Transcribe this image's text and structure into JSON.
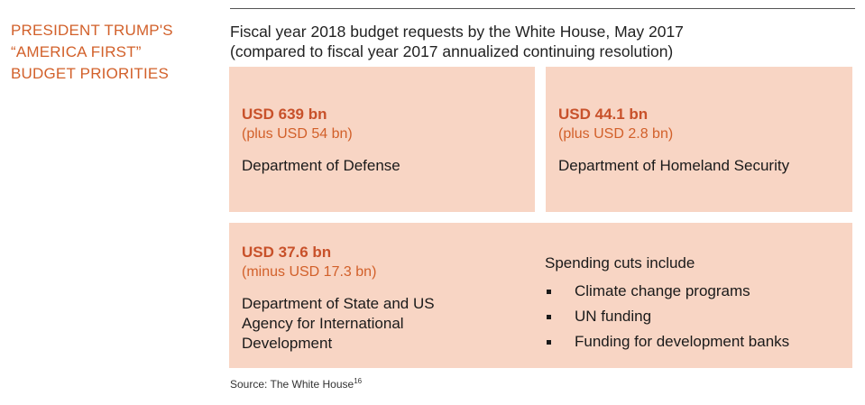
{
  "side_title": [
    "PRESIDENT TRUMP'S",
    "“AMERICA FIRST”",
    "BUDGET PRIORITIES"
  ],
  "subtitle": [
    "Fiscal year 2018 budget requests by the White House, May 2017",
    "(compared to fiscal year 2017 annualized continuing resolution)"
  ],
  "boxes": {
    "defense": {
      "amount": "USD 639 bn",
      "change": "(plus USD 54 bn)",
      "department": "Department of Defense"
    },
    "homeland": {
      "amount": "USD 44.1 bn",
      "change": "(plus USD 2.8 bn)",
      "department": "Department of Homeland Security"
    },
    "state": {
      "amount": "USD 37.6 bn",
      "change": "(minus USD 17.3 bn)",
      "department": "Department of State and US Agency for International Development",
      "cuts_title": "Spending cuts include",
      "cuts": [
        "Climate change programs",
        "UN funding",
        "Funding for development banks"
      ]
    }
  },
  "source": {
    "label": "Source:",
    "text": "The White House",
    "footnote": "16"
  },
  "colors": {
    "accent": "#d2602a",
    "amount": "#c8512a",
    "box_fill": "#f8d5c4"
  }
}
